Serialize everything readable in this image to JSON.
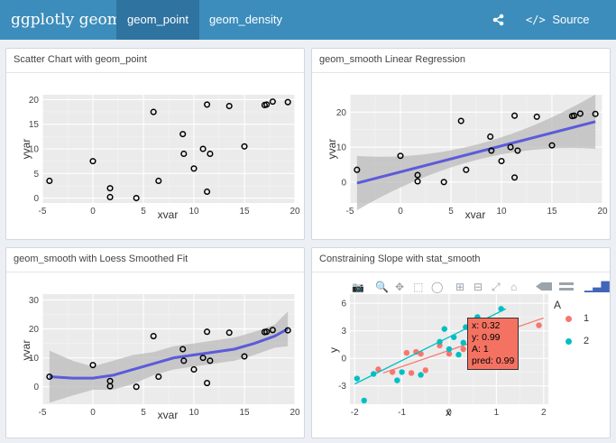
{
  "app": {
    "brand": "ggplotly geoms",
    "tabs": [
      {
        "label": "geom_point",
        "active": true
      },
      {
        "label": "geom_density",
        "active": false
      }
    ],
    "source_code_label": "Source Code",
    "share_icon": "share-icon",
    "code_icon": "code-icon"
  },
  "panels": [
    {
      "title": "Scatter Chart with geom_point"
    },
    {
      "title": "geom_smooth Linear Regression"
    },
    {
      "title": "geom_smooth with Loess Smoothed Fit"
    },
    {
      "title": "Constraining Slope with stat_smooth"
    }
  ],
  "colors": {
    "navbar": "#3c8dbc",
    "active_tab": "#2f73a0",
    "smooth_line": "#5b5bdb",
    "ribbon": "#b8b8b8",
    "group1": "#f8766d",
    "group2": "#00bfc4",
    "tooltip": "#f47262"
  },
  "chart_data": [
    {
      "type": "scatter",
      "title": "Scatter Chart with geom_point",
      "xlabel": "xvar",
      "ylabel": "yvar",
      "xlim": [
        -5,
        20
      ],
      "ylim": [
        -1,
        21
      ],
      "xticks": [
        -5,
        0,
        5,
        10,
        15,
        20
      ],
      "yticks": [
        0,
        5,
        10,
        15,
        20
      ],
      "points": [
        [
          -4.3,
          3.5
        ],
        [
          0,
          7.5
        ],
        [
          1.7,
          2
        ],
        [
          1.7,
          0.2
        ],
        [
          4.3,
          0
        ],
        [
          6,
          17.5
        ],
        [
          6.5,
          3.5
        ],
        [
          8.9,
          13
        ],
        [
          9,
          9
        ],
        [
          10,
          6
        ],
        [
          10.9,
          10
        ],
        [
          11.3,
          19
        ],
        [
          11.6,
          9
        ],
        [
          11.3,
          1.3
        ],
        [
          13.5,
          18.7
        ],
        [
          15,
          10.5
        ],
        [
          17,
          18.9
        ],
        [
          17.2,
          19
        ],
        [
          17.8,
          19.6
        ],
        [
          19.3,
          19.5
        ]
      ],
      "grid": true
    },
    {
      "type": "scatter",
      "title": "geom_smooth Linear Regression",
      "xlabel": "xvar",
      "ylabel": "yvar",
      "xlim": [
        -5,
        20
      ],
      "ylim": [
        -6,
        25
      ],
      "xticks": [
        -5,
        0,
        5,
        10,
        15,
        20
      ],
      "yticks": [
        0,
        10,
        20
      ],
      "points": [
        [
          -4.3,
          3.5
        ],
        [
          0,
          7.5
        ],
        [
          1.7,
          2
        ],
        [
          1.7,
          0.2
        ],
        [
          4.3,
          0
        ],
        [
          6,
          17.5
        ],
        [
          6.5,
          3.5
        ],
        [
          8.9,
          13
        ],
        [
          9,
          9
        ],
        [
          10,
          6
        ],
        [
          10.9,
          10
        ],
        [
          11.3,
          19
        ],
        [
          11.6,
          9
        ],
        [
          11.3,
          1.3
        ],
        [
          13.5,
          18.7
        ],
        [
          15,
          10.5
        ],
        [
          17,
          18.9
        ],
        [
          17.2,
          19
        ],
        [
          17.8,
          19.6
        ],
        [
          19.3,
          19.5
        ]
      ],
      "smooth": {
        "method": "lm",
        "x": [
          -4.3,
          19.3
        ],
        "y": [
          -0.3,
          17.3
        ]
      },
      "grid": true
    },
    {
      "type": "scatter",
      "title": "geom_smooth with Loess Smoothed Fit",
      "xlabel": "xvar",
      "ylabel": "yvar",
      "xlim": [
        -5,
        20
      ],
      "ylim": [
        -6,
        32
      ],
      "xticks": [
        -5,
        0,
        5,
        10,
        15,
        20
      ],
      "yticks": [
        0,
        10,
        20,
        30
      ],
      "points": [
        [
          -4.3,
          3.5
        ],
        [
          0,
          7.5
        ],
        [
          1.7,
          2
        ],
        [
          1.7,
          0.2
        ],
        [
          4.3,
          0
        ],
        [
          6,
          17.5
        ],
        [
          6.5,
          3.5
        ],
        [
          8.9,
          13
        ],
        [
          9,
          9
        ],
        [
          10,
          6
        ],
        [
          10.9,
          10
        ],
        [
          11.3,
          19
        ],
        [
          11.6,
          9
        ],
        [
          11.3,
          1.3
        ],
        [
          13.5,
          18.7
        ],
        [
          15,
          10.5
        ],
        [
          17,
          18.9
        ],
        [
          17.2,
          19
        ],
        [
          17.8,
          19.6
        ],
        [
          19.3,
          19.5
        ]
      ],
      "smooth": {
        "method": "loess",
        "x": [
          -4.3,
          -2,
          0,
          2,
          4,
          6,
          8,
          10,
          12,
          14,
          16,
          18,
          19.3
        ],
        "y": [
          3.5,
          3,
          3,
          4,
          6,
          8,
          10,
          11,
          12,
          13,
          15,
          17.5,
          20
        ]
      },
      "grid": true
    },
    {
      "type": "scatter",
      "title": "Constraining Slope with stat_smooth",
      "xlabel": "x",
      "ylabel": "y",
      "xlim": [
        -2.1,
        2.1
      ],
      "ylim": [
        -5,
        7
      ],
      "xticks": [
        -2,
        -1,
        0,
        1,
        2
      ],
      "yticks": [
        -3,
        0,
        3,
        6
      ],
      "legend": {
        "title": "A",
        "entries": [
          "1",
          "2"
        ],
        "position": "right"
      },
      "series": [
        {
          "name": "1",
          "points": [
            [
              -1.5,
              -1.2
            ],
            [
              -1.2,
              -1.5
            ],
            [
              -0.9,
              0.6
            ],
            [
              -0.8,
              -1.6
            ],
            [
              -0.7,
              0.7
            ],
            [
              -0.6,
              0.5
            ],
            [
              -0.5,
              -1.3
            ],
            [
              -0.2,
              1.4
            ],
            [
              0,
              0.5
            ],
            [
              0.3,
              1
            ],
            [
              0.5,
              2
            ],
            [
              0.8,
              2.8
            ],
            [
              1.9,
              3.6
            ]
          ],
          "line": [
            [
              -1.4,
              -1.6
            ],
            [
              2,
              4.4
            ]
          ]
        },
        {
          "name": "2",
          "points": [
            [
              -1.95,
              -2.2
            ],
            [
              -1.8,
              -4.6
            ],
            [
              -1.6,
              -1.7
            ],
            [
              -1.1,
              -2.4
            ],
            [
              -1,
              -1.5
            ],
            [
              -0.6,
              -1.8
            ],
            [
              -0.2,
              1.8
            ],
            [
              -0.1,
              3.2
            ],
            [
              0,
              1
            ],
            [
              0.1,
              2.3
            ],
            [
              0.2,
              0.4
            ],
            [
              0.3,
              1.7
            ],
            [
              0.35,
              3.4
            ],
            [
              0.45,
              3.8
            ],
            [
              0.6,
              4.5
            ],
            [
              0.9,
              3.7
            ],
            [
              1.1,
              5.4
            ]
          ],
          "line": [
            [
              -2,
              -2.8
            ],
            [
              1.2,
              5.4
            ]
          ]
        }
      ],
      "tooltip": {
        "lines": [
          "x: 0.32",
          "y: 0.99",
          "A: 1",
          "pred: 0.99"
        ]
      },
      "grid": true
    }
  ]
}
